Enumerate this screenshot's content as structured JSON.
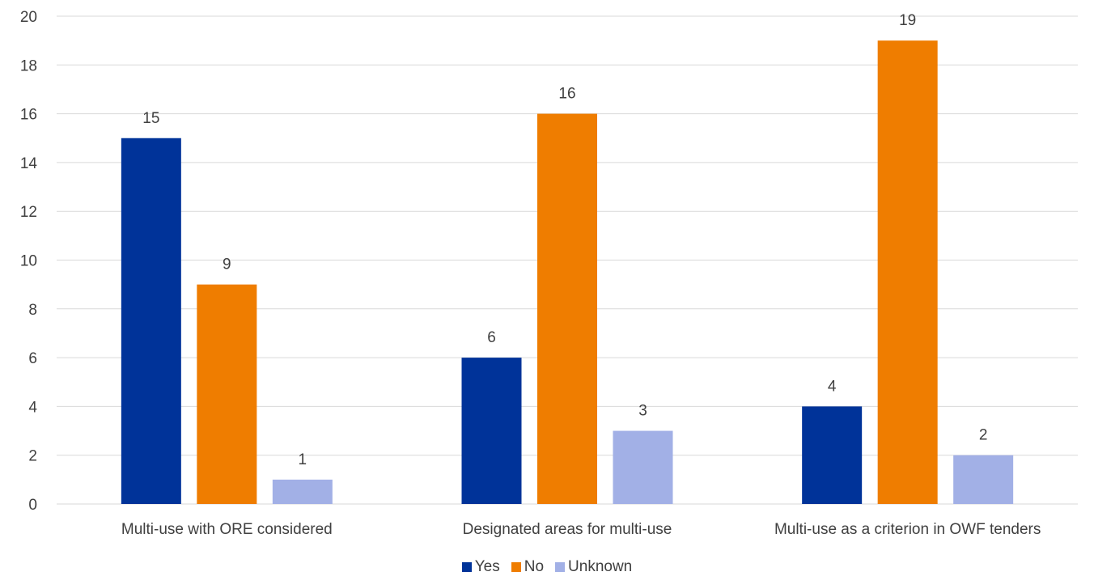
{
  "chart_data": {
    "type": "bar",
    "categories": [
      "Multi-use with ORE  considered",
      "Designated areas for multi-use",
      "Multi-use as a criterion in OWF tenders"
    ],
    "series": [
      {
        "name": "Yes",
        "values": [
          15,
          6,
          4
        ],
        "color": "#003399"
      },
      {
        "name": "No",
        "values": [
          9,
          16,
          19
        ],
        "color": "#ef7d00"
      },
      {
        "name": "Unknown",
        "values": [
          1,
          3,
          2
        ],
        "color": "#a2b0e6"
      }
    ],
    "ylim": [
      0,
      20
    ],
    "yticks": [
      0,
      2,
      4,
      6,
      8,
      10,
      12,
      14,
      16,
      18,
      20
    ],
    "grid": true,
    "legend_position": "bottom",
    "data_labels": true
  }
}
